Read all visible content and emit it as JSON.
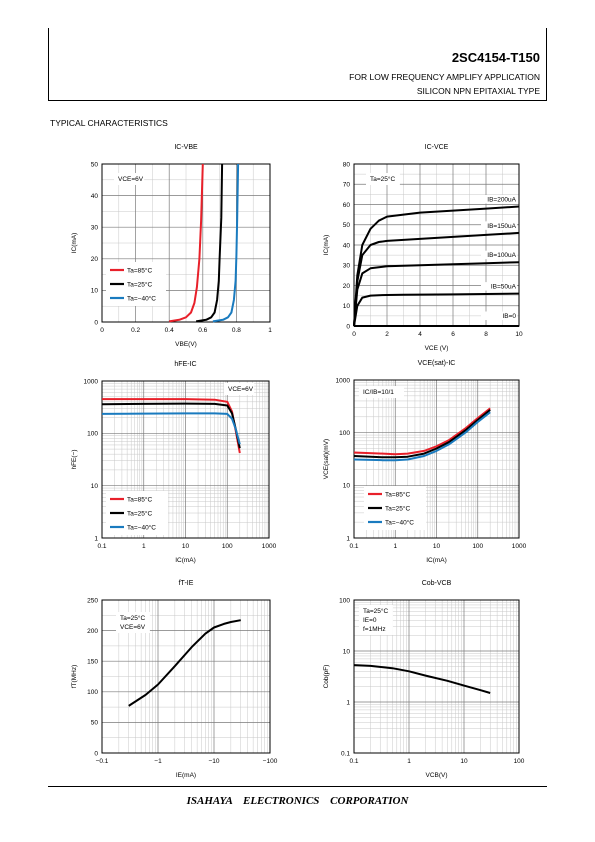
{
  "header": {
    "part_number": "2SC4154-T150",
    "subtitle_1": "FOR LOW FREQUENCY AMPLIFY APPLICATION",
    "subtitle_2": "SILICON NPN EPITAXIAL TYPE"
  },
  "section_title": "TYPICAL CHARACTERISTICS",
  "footer": {
    "company": "ISAHAYA ELECTRONICS CORPORATION"
  },
  "colors": {
    "ta85": "#e8202a",
    "ta25": "#000000",
    "ta_40": "#1a7bbf"
  },
  "chart_data": [
    {
      "id": "ic-vbe",
      "type": "line",
      "title": "IC-VBE",
      "xlabel": "VBE(V)",
      "ylabel": "IC(mA)",
      "xlim": [
        0,
        1
      ],
      "ylim": [
        0,
        50
      ],
      "xticks": [
        0,
        0.2,
        0.4,
        0.6,
        0.8,
        1
      ],
      "yticks": [
        0,
        10,
        20,
        30,
        40,
        50
      ],
      "conditions": [
        "VCE=6V"
      ],
      "legend": {
        "position": "bottom-left"
      },
      "series": [
        {
          "name": "Ta=85°C",
          "color": "#e8202a",
          "x": [
            0.4,
            0.46,
            0.5,
            0.53,
            0.55,
            0.565,
            0.58,
            0.59,
            0.6
          ],
          "y": [
            0.2,
            0.7,
            1.5,
            3,
            6,
            11,
            20,
            32,
            50
          ]
        },
        {
          "name": "Ta=25°C",
          "color": "#000000",
          "x": [
            0.56,
            0.62,
            0.65,
            0.67,
            0.685,
            0.695,
            0.7,
            0.71,
            0.715
          ],
          "y": [
            0.2,
            0.7,
            1.5,
            3,
            7,
            13,
            20,
            33,
            50
          ]
        },
        {
          "name": "Ta=−40°C",
          "color": "#1a7bbf",
          "x": [
            0.66,
            0.72,
            0.75,
            0.77,
            0.785,
            0.795,
            0.8,
            0.805,
            0.81
          ],
          "y": [
            0.2,
            0.7,
            1.5,
            3,
            7,
            13,
            21,
            33,
            50
          ]
        }
      ]
    },
    {
      "id": "ic-vce",
      "type": "line",
      "title": "IC-VCE",
      "xlabel": "VCE (V)",
      "ylabel": "IC(mA)",
      "xlim": [
        0,
        10
      ],
      "ylim": [
        0,
        80
      ],
      "xticks": [
        0,
        2,
        4,
        6,
        8,
        10
      ],
      "yticks": [
        0,
        10,
        20,
        30,
        40,
        50,
        60,
        70,
        80
      ],
      "conditions": [
        "Ta=25°C"
      ],
      "series": [
        {
          "name": "IB=200uA",
          "color": "#000000",
          "x": [
            0,
            0.2,
            0.5,
            1,
            1.5,
            2,
            3,
            4,
            6,
            8,
            10
          ],
          "y": [
            0,
            25,
            40,
            48,
            52,
            54,
            55,
            56,
            57,
            58,
            59
          ]
        },
        {
          "name": "IB=150uA",
          "color": "#000000",
          "x": [
            0,
            0.2,
            0.5,
            1,
            1.5,
            2,
            3,
            4,
            6,
            8,
            10
          ],
          "y": [
            0,
            22,
            35,
            40,
            41.5,
            42,
            42.5,
            43,
            44,
            45,
            46
          ]
        },
        {
          "name": "IB=100uA",
          "color": "#000000",
          "x": [
            0,
            0.2,
            0.5,
            1,
            1.5,
            2,
            3,
            4,
            6,
            8,
            10
          ],
          "y": [
            0,
            18,
            26,
            28.5,
            29,
            29.5,
            29.8,
            30,
            30.5,
            31,
            31.5
          ]
        },
        {
          "name": "IB=50uA",
          "color": "#000000",
          "x": [
            0,
            0.2,
            0.5,
            1,
            1.5,
            2,
            3,
            4,
            6,
            8,
            10
          ],
          "y": [
            0,
            10,
            14,
            15,
            15.2,
            15.3,
            15.4,
            15.5,
            15.6,
            15.8,
            16
          ]
        },
        {
          "name": "IB=0",
          "color": "#000000",
          "x": [
            0,
            10
          ],
          "y": [
            0,
            0
          ]
        }
      ]
    },
    {
      "id": "hfe-ic",
      "type": "line",
      "title": "hFE-IC",
      "xlabel": "IC(mA)",
      "ylabel": "hFE(−)",
      "xscale": "log",
      "yscale": "log",
      "xlim": [
        0.1,
        1000
      ],
      "ylim": [
        1,
        1000
      ],
      "xticks": [
        0.1,
        1,
        10,
        100,
        1000
      ],
      "yticks": [
        1,
        10,
        100,
        1000
      ],
      "conditions": [
        "VCE=6V"
      ],
      "legend": {
        "position": "bottom-left"
      },
      "series": [
        {
          "name": "Ta=85°C",
          "color": "#e8202a",
          "x": [
            0.1,
            1,
            10,
            50,
            100,
            130,
            160,
            200
          ],
          "y": [
            450,
            450,
            450,
            440,
            400,
            260,
            110,
            42
          ]
        },
        {
          "name": "Ta=25°C",
          "color": "#000000",
          "x": [
            0.1,
            1,
            10,
            50,
            100,
            130,
            160,
            200
          ],
          "y": [
            360,
            365,
            370,
            365,
            340,
            240,
            120,
            52
          ]
        },
        {
          "name": "Ta=−40°C",
          "color": "#1a7bbf",
          "x": [
            0.1,
            1,
            10,
            50,
            100,
            130,
            160,
            200
          ],
          "y": [
            235,
            238,
            240,
            240,
            235,
            190,
            120,
            62
          ]
        }
      ]
    },
    {
      "id": "vcesat-ic",
      "type": "line",
      "title": "VCE(sat)-IC",
      "xlabel": "IC(mA)",
      "ylabel": "VCE(sat)(mV)",
      "xscale": "log",
      "yscale": "log",
      "xlim": [
        0.1,
        1000
      ],
      "ylim": [
        1,
        1000
      ],
      "xticks": [
        0.1,
        1,
        10,
        100,
        1000
      ],
      "yticks": [
        1,
        10,
        100,
        1000
      ],
      "conditions": [
        "IC/IB=10/1"
      ],
      "legend": {
        "position": "bottom-left"
      },
      "series": [
        {
          "name": "Ta=85°C",
          "color": "#e8202a",
          "x": [
            0.1,
            0.5,
            1,
            2,
            5,
            10,
            20,
            50,
            100,
            200
          ],
          "y": [
            42,
            40,
            39,
            40,
            45,
            55,
            72,
            120,
            190,
            290
          ]
        },
        {
          "name": "Ta=25°C",
          "color": "#000000",
          "x": [
            0.1,
            0.5,
            1,
            2,
            5,
            10,
            20,
            50,
            100,
            200
          ],
          "y": [
            36,
            34,
            34,
            35,
            40,
            50,
            66,
            110,
            175,
            270
          ]
        },
        {
          "name": "Ta=−40°C",
          "color": "#1a7bbf",
          "x": [
            0.1,
            0.5,
            1,
            2,
            5,
            10,
            20,
            50,
            100,
            200
          ],
          "y": [
            31,
            30,
            30,
            31,
            36,
            45,
            60,
            100,
            160,
            245
          ]
        }
      ]
    },
    {
      "id": "ft-ie",
      "type": "line",
      "title": "fT-IE",
      "xlabel": "IE(mA)",
      "ylabel": "fT(MHz)",
      "xscale": "log",
      "xlim": [
        0.1,
        100
      ],
      "ylim": [
        0,
        250
      ],
      "xticks": [
        0.1,
        1,
        10,
        100
      ],
      "xticklabels": [
        "−0.1",
        "−1",
        "−10",
        "−100"
      ],
      "yticks": [
        0,
        50,
        100,
        150,
        200,
        250
      ],
      "conditions": [
        "Ta=25°C",
        "VCE=6V"
      ],
      "series": [
        {
          "name": "",
          "color": "#000000",
          "x": [
            0.3,
            0.6,
            1,
            2,
            4,
            7,
            10,
            15,
            20,
            30
          ],
          "y": [
            77,
            95,
            112,
            142,
            173,
            195,
            205,
            211,
            214,
            217
          ]
        }
      ]
    },
    {
      "id": "cob-vcb",
      "type": "line",
      "title": "Cob-VCB",
      "xlabel": "VCB(V)",
      "ylabel": "Cob(pF)",
      "xscale": "log",
      "yscale": "log",
      "xlim": [
        0.1,
        100
      ],
      "ylim": [
        0.1,
        100
      ],
      "xticks": [
        0.1,
        1,
        10,
        100
      ],
      "yticks": [
        0.1,
        1,
        10,
        100
      ],
      "conditions": [
        "Ta=25°C",
        "IE=0",
        "f=1MHz"
      ],
      "series": [
        {
          "name": "",
          "color": "#000000",
          "x": [
            0.1,
            0.2,
            0.5,
            1,
            2,
            5,
            10,
            20,
            30
          ],
          "y": [
            5.3,
            5.1,
            4.6,
            4.0,
            3.3,
            2.6,
            2.1,
            1.7,
            1.5
          ]
        }
      ]
    }
  ]
}
